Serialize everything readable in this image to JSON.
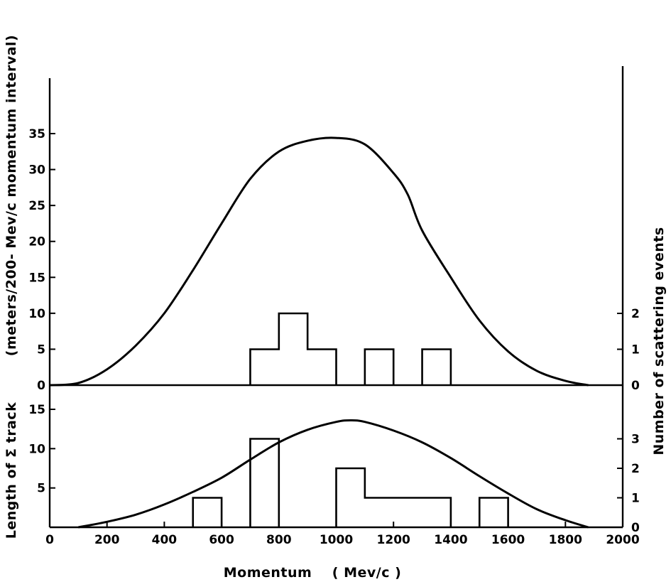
{
  "chart_data": [
    {
      "panel": "upper",
      "type": "line",
      "x_range": [
        0,
        2000
      ],
      "y_left_ticks": [
        0,
        5,
        10,
        15,
        20,
        25,
        30,
        35
      ],
      "y_left_range": [
        0,
        40
      ],
      "y_right_ticks": [
        0,
        1,
        2
      ],
      "y_right_range": [
        0,
        5
      ],
      "curve": {
        "x": [
          0,
          100,
          200,
          300,
          400,
          500,
          600,
          700,
          800,
          900,
          1000,
          1100,
          1200,
          1250,
          1300,
          1400,
          1500,
          1600,
          1700,
          1800,
          1880
        ],
        "y": [
          0,
          0.3,
          2.2,
          5.5,
          10,
          16,
          22.5,
          28.7,
          32.5,
          34,
          34.4,
          33.5,
          29.5,
          26.5,
          21.5,
          15,
          9,
          4.7,
          2,
          0.6,
          0
        ]
      },
      "histogram": {
        "bin_edges": [
          700,
          800,
          900,
          1000,
          1100,
          1200,
          1300,
          1400
        ],
        "counts": [
          1,
          2,
          1,
          0,
          1,
          0,
          1
        ]
      }
    },
    {
      "panel": "lower",
      "type": "line",
      "x_range": [
        0,
        2000
      ],
      "y_left_ticks": [
        5,
        10,
        15
      ],
      "y_left_range": [
        0,
        20
      ],
      "y_right_ticks": [
        0,
        1,
        2,
        3
      ],
      "y_right_range": [
        0,
        5
      ],
      "curve": {
        "x": [
          100,
          200,
          300,
          400,
          500,
          600,
          700,
          800,
          900,
          1000,
          1050,
          1100,
          1200,
          1300,
          1400,
          1500,
          1600,
          1700,
          1800,
          1880
        ],
        "y": [
          0,
          0.7,
          1.6,
          2.9,
          4.5,
          6.3,
          8.6,
          10.8,
          12.4,
          13.4,
          13.6,
          13.4,
          12.3,
          10.8,
          8.8,
          6.5,
          4.3,
          2.3,
          0.9,
          0
        ]
      },
      "histogram": {
        "bins": [
          {
            "from": 500,
            "to": 600,
            "count": 1
          },
          {
            "from": 700,
            "to": 800,
            "count": 3
          },
          {
            "from": 1000,
            "to": 1100,
            "count": 2
          },
          {
            "from": 1100,
            "to": 1400,
            "count": 1
          },
          {
            "from": 1500,
            "to": 1600,
            "count": 1
          }
        ]
      }
    }
  ],
  "x_ticks": [
    0,
    200,
    400,
    600,
    800,
    1000,
    1200,
    1400,
    1600,
    1800,
    2000
  ],
  "labels": {
    "xlabel": "Momentum    ( Mev/c )",
    "ylabel_upper": "(meters/200- Mev/c  momentum interval)",
    "ylabel_lower": "Length of Σ track",
    "ylabel_right": "Number of scattering events"
  }
}
